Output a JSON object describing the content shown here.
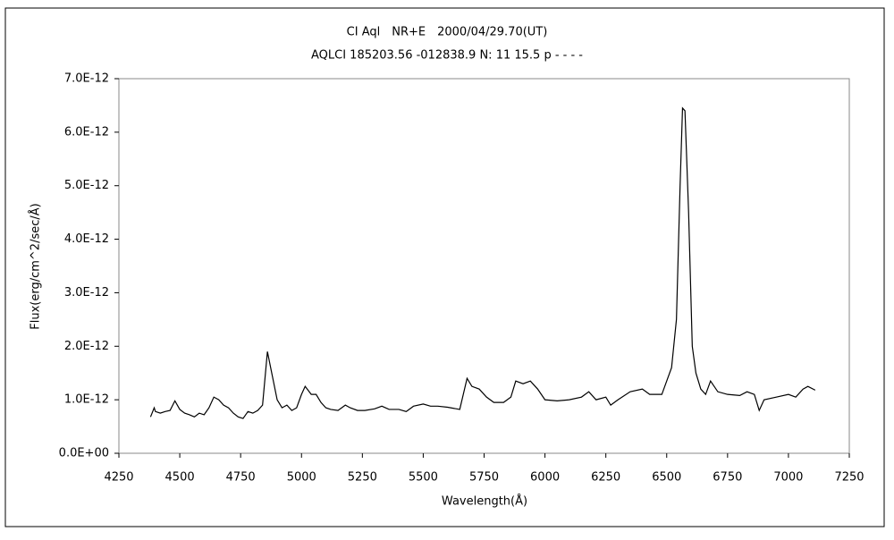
{
  "chart_data": {
    "type": "line",
    "title": "CI Aql　NR+E　2000/04/29.70(UT)",
    "subtitle": "AQLCI 185203.56 -012838.9 N: 11 15.5 p - - - -",
    "x_label": "Wavelength(Å)",
    "y_label": "Flux(erg/cm^2/sec/Å)",
    "xlim": [
      4250,
      7250
    ],
    "xticks": [
      4250,
      4500,
      4750,
      5000,
      5250,
      5500,
      5750,
      6000,
      6250,
      6500,
      6750,
      7000,
      7250
    ],
    "ylim": [
      0,
      7e-12
    ],
    "yticks": [
      {
        "value": 0,
        "label": "0.0E+00"
      },
      {
        "value": 1e-12,
        "label": "1.0E-12"
      },
      {
        "value": 2e-12,
        "label": "2.0E-12"
      },
      {
        "value": 3e-12,
        "label": "3.0E-12"
      },
      {
        "value": 4e-12,
        "label": "4.0E-12"
      },
      {
        "value": 5e-12,
        "label": "5.0E-12"
      },
      {
        "value": 6e-12,
        "label": "6.0E-12"
      },
      {
        "value": 7e-12,
        "label": "7.0E-12"
      }
    ],
    "grid": false,
    "series": [
      {
        "color": "#000000",
        "x": [
          4380,
          4395,
          4400,
          4420,
          4440,
          4460,
          4480,
          4500,
          4520,
          4540,
          4560,
          4580,
          4600,
          4620,
          4640,
          4660,
          4680,
          4700,
          4720,
          4740,
          4760,
          4780,
          4800,
          4820,
          4840,
          4860,
          4880,
          4900,
          4920,
          4940,
          4960,
          4980,
          5000,
          5015,
          5040,
          5060,
          5080,
          5100,
          5120,
          5150,
          5180,
          5200,
          5230,
          5260,
          5300,
          5330,
          5360,
          5400,
          5430,
          5460,
          5500,
          5530,
          5560,
          5600,
          5650,
          5680,
          5700,
          5730,
          5760,
          5790,
          5830,
          5860,
          5880,
          5910,
          5940,
          5970,
          6000,
          6050,
          6100,
          6150,
          6180,
          6210,
          6250,
          6270,
          6300,
          6350,
          6400,
          6430,
          6480,
          6500,
          6520,
          6540,
          6555,
          6565,
          6575,
          6590,
          6605,
          6620,
          6640,
          6660,
          6680,
          6710,
          6750,
          6800,
          6830,
          6860,
          6880,
          6900,
          6950,
          7000,
          7030,
          7060,
          7080,
          7110
        ],
        "values": [
          6.8e-13,
          8.5e-13,
          7.8e-13,
          7.5e-13,
          7.8e-13,
          8e-13,
          9.8e-13,
          8.2e-13,
          7.5e-13,
          7.2e-13,
          6.8e-13,
          7.5e-13,
          7.2e-13,
          8.5e-13,
          1.05e-12,
          1e-12,
          9e-13,
          8.5e-13,
          7.5e-13,
          6.8e-13,
          6.5e-13,
          7.8e-13,
          7.5e-13,
          8e-13,
          9e-13,
          1.9e-12,
          1.45e-12,
          1e-12,
          8.5e-13,
          9e-13,
          8e-13,
          8.5e-13,
          1.1e-12,
          1.25e-12,
          1.1e-12,
          1.1e-12,
          9.5e-13,
          8.5e-13,
          8.2e-13,
          8e-13,
          9e-13,
          8.5e-13,
          8e-13,
          8e-13,
          8.3e-13,
          8.8e-13,
          8.2e-13,
          8.2e-13,
          7.8e-13,
          8.8e-13,
          9.2e-13,
          8.8e-13,
          8.8e-13,
          8.6e-13,
          8.2e-13,
          1.4e-12,
          1.25e-12,
          1.2e-12,
          1.05e-12,
          9.5e-13,
          9.5e-13,
          1.05e-12,
          1.35e-12,
          1.3e-12,
          1.35e-12,
          1.2e-12,
          1e-12,
          9.8e-13,
          1e-12,
          1.05e-12,
          1.15e-12,
          1e-12,
          1.05e-12,
          9e-13,
          1e-12,
          1.15e-12,
          1.2e-12,
          1.1e-12,
          1.1e-12,
          1.35e-12,
          1.6e-12,
          2.5e-12,
          5e-12,
          6.45e-12,
          6.4e-12,
          4.5e-12,
          2e-12,
          1.5e-12,
          1.2e-12,
          1.1e-12,
          1.35e-12,
          1.15e-12,
          1.1e-12,
          1.08e-12,
          1.15e-12,
          1.1e-12,
          8e-13,
          1e-12,
          1.05e-12,
          1.1e-12,
          1.05e-12,
          1.2e-12,
          1.25e-12,
          1.18e-12
        ]
      }
    ]
  }
}
